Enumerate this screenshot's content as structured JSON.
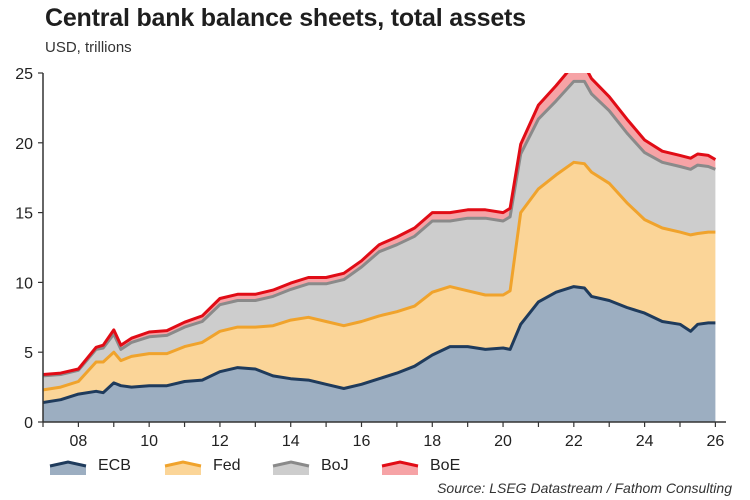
{
  "title": "Central bank balance sheets, total assets",
  "subtitle": "USD, trillions",
  "source": "Source: LSEG Datastream / Fathom Consulting",
  "chart_data": {
    "type": "area",
    "stacked": true,
    "xlim": [
      2007,
      2026.3
    ],
    "ylim": [
      0,
      25
    ],
    "y_ticks": [
      0,
      5,
      10,
      15,
      20,
      25
    ],
    "x_ticks": [
      {
        "value": 2008,
        "label": "08"
      },
      {
        "value": 2010,
        "label": "10"
      },
      {
        "value": 2012,
        "label": "12"
      },
      {
        "value": 2014,
        "label": "14"
      },
      {
        "value": 2016,
        "label": "16"
      },
      {
        "value": 2018,
        "label": "18"
      },
      {
        "value": 2020,
        "label": "20"
      },
      {
        "value": 2022,
        "label": "22"
      },
      {
        "value": 2024,
        "label": "24"
      },
      {
        "value": 2026,
        "label": "26"
      }
    ],
    "legend_position": "bottom",
    "grid": false,
    "x": [
      2007.0,
      2007.5,
      2008.0,
      2008.5,
      2008.7,
      2009.0,
      2009.2,
      2009.5,
      2010.0,
      2010.5,
      2011.0,
      2011.5,
      2012.0,
      2012.5,
      2013.0,
      2013.5,
      2014.0,
      2014.5,
      2015.0,
      2015.5,
      2016.0,
      2016.5,
      2017.0,
      2017.5,
      2018.0,
      2018.5,
      2019.0,
      2019.5,
      2020.0,
      2020.2,
      2020.5,
      2021.0,
      2021.5,
      2022.0,
      2022.3,
      2022.5,
      2023.0,
      2023.5,
      2024.0,
      2024.5,
      2025.0,
      2025.3,
      2025.5,
      2025.8,
      2026.0
    ],
    "series": [
      {
        "name": "ECB",
        "color": "#1f3b5c",
        "fill": "#9caec1",
        "values": [
          1.4,
          1.6,
          2.0,
          2.2,
          2.1,
          2.8,
          2.6,
          2.5,
          2.6,
          2.6,
          2.9,
          3.0,
          3.6,
          3.9,
          3.8,
          3.3,
          3.1,
          3.0,
          2.7,
          2.4,
          2.7,
          3.1,
          3.5,
          4.0,
          4.8,
          5.4,
          5.4,
          5.2,
          5.3,
          5.2,
          7.0,
          8.6,
          9.3,
          9.7,
          9.6,
          9.0,
          8.7,
          8.2,
          7.8,
          7.2,
          7.0,
          6.5,
          7.0,
          7.1,
          7.1
        ]
      },
      {
        "name": "Fed",
        "color": "#f0a32c",
        "fill": "#fbd598",
        "values": [
          0.9,
          0.9,
          0.9,
          2.1,
          2.2,
          2.2,
          1.8,
          2.2,
          2.3,
          2.3,
          2.5,
          2.7,
          2.9,
          2.9,
          3.0,
          3.6,
          4.2,
          4.5,
          4.5,
          4.5,
          4.5,
          4.5,
          4.4,
          4.3,
          4.5,
          4.3,
          4.0,
          3.9,
          3.8,
          4.2,
          8.0,
          8.1,
          8.4,
          8.9,
          8.9,
          8.9,
          8.4,
          7.5,
          6.7,
          6.7,
          6.6,
          6.9,
          6.5,
          6.5,
          6.5
        ]
      },
      {
        "name": "BoJ",
        "color": "#8a8a8a",
        "fill": "#cdcdcd",
        "values": [
          1.0,
          0.9,
          0.8,
          0.9,
          1.0,
          1.3,
          0.8,
          1.0,
          1.2,
          1.3,
          1.4,
          1.5,
          1.9,
          1.9,
          1.9,
          2.1,
          2.2,
          2.4,
          2.7,
          3.3,
          3.9,
          4.6,
          4.8,
          5.0,
          5.1,
          4.7,
          5.2,
          5.5,
          5.3,
          5.3,
          4.2,
          5.0,
          5.3,
          5.8,
          5.9,
          5.6,
          5.2,
          5.0,
          4.8,
          4.7,
          4.7,
          4.7,
          4.9,
          4.7,
          4.5
        ]
      },
      {
        "name": "BoE",
        "color": "#e10c16",
        "fill": "#f6a3a6",
        "values": [
          0.1,
          0.1,
          0.1,
          0.15,
          0.2,
          0.3,
          0.3,
          0.3,
          0.35,
          0.35,
          0.35,
          0.4,
          0.45,
          0.45,
          0.45,
          0.45,
          0.45,
          0.45,
          0.45,
          0.45,
          0.45,
          0.5,
          0.55,
          0.6,
          0.6,
          0.6,
          0.6,
          0.6,
          0.6,
          0.6,
          0.7,
          1.0,
          1.1,
          1.2,
          1.15,
          1.1,
          1.0,
          1.0,
          0.9,
          0.8,
          0.8,
          0.8,
          0.8,
          0.8,
          0.7
        ]
      }
    ]
  }
}
